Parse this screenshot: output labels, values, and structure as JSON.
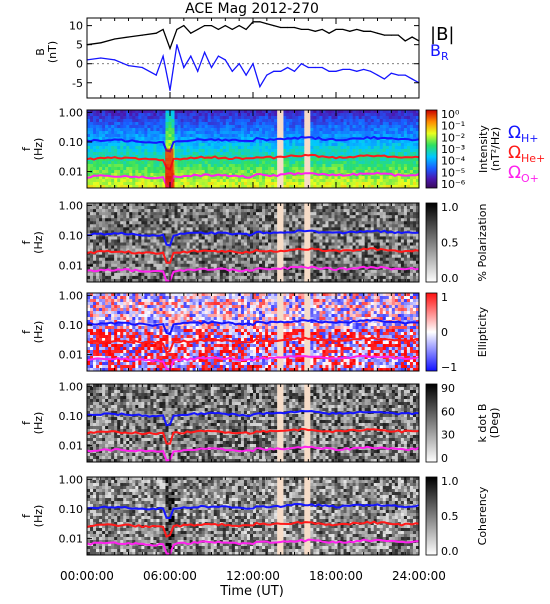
{
  "title": "ACE Mag 2012-270",
  "x_axis": {
    "label": "Time (UT)",
    "ticks": [
      "00:00:00",
      "06:00:00",
      "12:00:00",
      "18:00:00",
      "24:00:00"
    ],
    "tick_hours": [
      0,
      6,
      12,
      18,
      24
    ]
  },
  "legend_b": [
    {
      "label": "|B|",
      "color": "#000000"
    },
    {
      "label": "B",
      "sub": "R",
      "color": "#1515ff"
    }
  ],
  "legend_gyro": [
    {
      "label": "Ω",
      "sub": "H+",
      "color": "#1515ff"
    },
    {
      "label": "Ω",
      "sub": "He+",
      "color": "#ff1a1a"
    },
    {
      "label": "Ω",
      "sub": "O+",
      "color": "#ff22ee"
    }
  ],
  "colors": {
    "bmag": "#000000",
    "br": "#1515ff",
    "gyro_h": "#1515ff",
    "gyro_he": "#ff1a1a",
    "gyro_o": "#ff22ee",
    "data_gap": "#f6dcc8"
  },
  "chart_data": [
    {
      "type": "line",
      "panel": "magnetic-field",
      "ylabel": "B",
      "yunit": "(nT)",
      "yticks": [
        10,
        5,
        0,
        -5
      ],
      "ylim": [
        -9,
        12
      ],
      "x_unit": "hours UT",
      "series": [
        {
          "name": "|B|",
          "x": [
            0,
            1,
            2,
            3,
            4,
            5,
            5.5,
            6,
            6.5,
            7,
            7.5,
            8,
            8.5,
            9,
            9.5,
            10,
            10.5,
            11,
            11.5,
            12,
            12.5,
            13,
            13.5,
            14,
            14.5,
            15,
            15.5,
            16,
            16.5,
            17,
            17.5,
            18,
            18.5,
            19,
            19.5,
            20,
            20.5,
            21,
            21.5,
            22,
            22.5,
            23,
            23.5,
            24
          ],
          "y": [
            5,
            5.5,
            6.5,
            7,
            7.5,
            8,
            9,
            4,
            9,
            10,
            8,
            9,
            10,
            10,
            9,
            10,
            9,
            10,
            9,
            11,
            11,
            10.5,
            10,
            9.5,
            9.5,
            9.5,
            9,
            9,
            8.5,
            9,
            8,
            9,
            9,
            8.5,
            9,
            8.5,
            8.5,
            8,
            7.5,
            7.5,
            7.5,
            6,
            7,
            6
          ]
        },
        {
          "name": "B",
          "x": [
            0,
            1,
            2,
            3,
            4,
            5,
            5.5,
            6,
            6.5,
            7,
            7.5,
            8,
            8.5,
            9,
            9.5,
            10,
            10.5,
            11,
            11.5,
            12,
            12.5,
            13,
            13.5,
            14,
            14.5,
            15,
            15.5,
            16,
            16.5,
            17,
            17.5,
            18,
            18.5,
            19,
            19.5,
            20,
            20.5,
            21,
            21.5,
            22,
            22.5,
            23,
            23.5,
            24
          ],
          "y": [
            1,
            1.5,
            1,
            -0.5,
            -1,
            -3,
            2,
            -7,
            5,
            -1,
            2,
            -2,
            3,
            -1,
            2,
            1,
            -2,
            0,
            -3,
            0,
            -6,
            -3,
            -2,
            -2,
            -1,
            -2,
            0,
            -1,
            -1,
            -1,
            -2,
            -2,
            -1.5,
            -1.5,
            -2,
            -1.5,
            -2,
            -3,
            -4,
            -2.5,
            -3,
            -3,
            -4,
            -5
          ]
        }
      ]
    },
    {
      "type": "heatmap",
      "panel": "power-spectral-density",
      "ylabel": "f",
      "yunit": "(Hz)",
      "yscale": "log",
      "yticks": [
        "1.00",
        "0.10",
        "0.01"
      ],
      "colorbar_label": "Intensity",
      "colorbar_unit": "(nT²/Hz)",
      "colorbar_ticks": [
        "10⁰",
        "10⁻¹",
        "10⁻²",
        "10⁻³",
        "10⁻⁴",
        "10⁻⁵",
        "10⁻⁶"
      ],
      "data_gaps_hours": [
        [
          13.8,
          14.2
        ],
        [
          15.8,
          16.1
        ]
      ]
    },
    {
      "type": "heatmap",
      "panel": "percent-polarization",
      "ylabel": "f",
      "yunit": "(Hz)",
      "yscale": "log",
      "yticks": [
        "1.00",
        "0.10",
        "0.01"
      ],
      "colorbar_label": "% Polarization",
      "colorbar_ticks": [
        "1.0",
        "0.5",
        "0.0"
      ],
      "data_gaps_hours": [
        [
          13.8,
          14.2
        ],
        [
          15.8,
          16.1
        ]
      ]
    },
    {
      "type": "heatmap",
      "panel": "ellipticity",
      "ylabel": "f",
      "yunit": "(Hz)",
      "yscale": "log",
      "yticks": [
        "1.00",
        "0.10",
        "0.01"
      ],
      "colorbar_label": "Ellipticity",
      "colorbar_ticks": [
        "1",
        "0",
        "−1"
      ],
      "data_gaps_hours": [
        [
          13.8,
          14.2
        ],
        [
          15.8,
          16.1
        ]
      ]
    },
    {
      "type": "heatmap",
      "panel": "k-dot-b",
      "ylabel": "f",
      "yunit": "(Hz)",
      "yscale": "log",
      "yticks": [
        "1.00",
        "0.10",
        "0.01"
      ],
      "colorbar_label": "k dot B",
      "colorbar_unit": "(Deg)",
      "colorbar_ticks": [
        "90",
        "60",
        "30",
        "0"
      ],
      "data_gaps_hours": [
        [
          13.8,
          14.2
        ],
        [
          15.8,
          16.1
        ]
      ]
    },
    {
      "type": "heatmap",
      "panel": "coherency",
      "ylabel": "f",
      "yunit": "(Hz)",
      "yscale": "log",
      "yticks": [
        "1.00",
        "0.10",
        "0.01"
      ],
      "colorbar_label": "Coherency",
      "colorbar_ticks": [
        "1.0",
        "0.5",
        "0.0"
      ],
      "data_gaps_hours": [
        [
          13.8,
          14.2
        ],
        [
          15.8,
          16.1
        ]
      ]
    }
  ]
}
